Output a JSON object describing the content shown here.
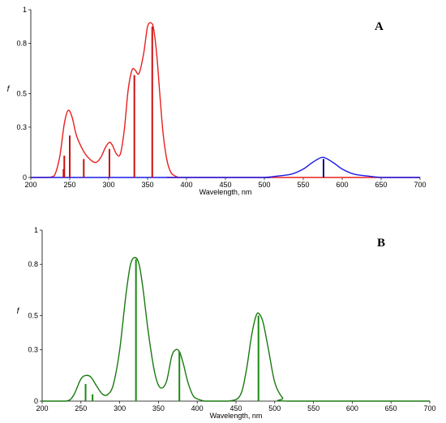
{
  "chart_data": [
    {
      "type": "line",
      "panel_label": "A",
      "xlabel": "Wavelength, nm",
      "ylabel": "f",
      "xlim": [
        200,
        700
      ],
      "ylim": [
        0,
        1.0
      ],
      "xticks": [
        "200",
        "250",
        "300",
        "350",
        "400",
        "450",
        "500",
        "550",
        "600",
        "650",
        "700"
      ],
      "yticks": [
        {
          "value": 0,
          "label": "0"
        },
        {
          "value": 0.3,
          "label": "0.3"
        },
        {
          "value": 0.5,
          "label": "0.5"
        },
        {
          "value": 0.8,
          "label": "0.8"
        },
        {
          "value": 1.0,
          "label": "1"
        }
      ],
      "grid": false,
      "series": [
        {
          "kind": "curve",
          "color": "#e8201e",
          "x": [
            200,
            220,
            230,
            237,
            243,
            248,
            253,
            258,
            263,
            270,
            278,
            284,
            290,
            296,
            301,
            305,
            310,
            315,
            320,
            325,
            330,
            334,
            339,
            345,
            350,
            355,
            358,
            362,
            366,
            370,
            375,
            380,
            385,
            390,
            400,
            700
          ],
          "y": [
            0,
            0,
            0.01,
            0.12,
            0.32,
            0.4,
            0.36,
            0.26,
            0.2,
            0.14,
            0.1,
            0.09,
            0.12,
            0.18,
            0.21,
            0.19,
            0.14,
            0.14,
            0.28,
            0.52,
            0.64,
            0.64,
            0.62,
            0.74,
            0.9,
            0.92,
            0.88,
            0.72,
            0.48,
            0.26,
            0.1,
            0.03,
            0.01,
            0.0,
            0,
            0
          ]
        },
        {
          "kind": "curve",
          "color": "#1a1ae6",
          "x": [
            200,
            480,
            500,
            520,
            535,
            550,
            562,
            575,
            588,
            600,
            615,
            630,
            650,
            670,
            700
          ],
          "y": [
            0,
            0,
            0.0,
            0.01,
            0.02,
            0.05,
            0.09,
            0.12,
            0.09,
            0.05,
            0.02,
            0.01,
            0.0,
            0,
            0
          ],
          "note": ""
        },
        {
          "kind": "sticks",
          "color": "#cc1010",
          "x": [
            242,
            243,
            250,
            268,
            301,
            333,
            356
          ],
          "y": [
            0.05,
            0.13,
            0.25,
            0.11,
            0.17,
            0.61,
            0.9
          ]
        },
        {
          "kind": "sticks",
          "color": "#0a0a80",
          "x": [
            576
          ],
          "y": [
            0.11
          ]
        }
      ]
    },
    {
      "type": "line",
      "panel_label": "B",
      "xlabel": "Wavelength, nm",
      "ylabel": "f",
      "xlim": [
        200,
        700
      ],
      "ylim": [
        0,
        1.0
      ],
      "xticks": [
        "200",
        "250",
        "300",
        "350",
        "400",
        "450",
        "500",
        "550",
        "600",
        "650",
        "700"
      ],
      "yticks": [
        {
          "value": 0,
          "label": "0"
        },
        {
          "value": 0.3,
          "label": "0.3"
        },
        {
          "value": 0.5,
          "label": "0.5"
        },
        {
          "value": 0.8,
          "label": "0.8"
        },
        {
          "value": 1.0,
          "label": "1"
        }
      ],
      "grid": false,
      "series": [
        {
          "kind": "curve",
          "color": "#1a7a10",
          "x": [
            200,
            230,
            240,
            250,
            257,
            263,
            270,
            278,
            285,
            292,
            300,
            308,
            314,
            320,
            325,
            330,
            337,
            345,
            352,
            360,
            367,
            372,
            377,
            382,
            388,
            395,
            402,
            410,
            420,
            440,
            455,
            463,
            470,
            476,
            480,
            485,
            492,
            500,
            510,
            520,
            700
          ],
          "y": [
            0,
            0,
            0.03,
            0.13,
            0.15,
            0.14,
            0.09,
            0.04,
            0.04,
            0.1,
            0.3,
            0.62,
            0.8,
            0.84,
            0.8,
            0.66,
            0.4,
            0.17,
            0.08,
            0.11,
            0.26,
            0.3,
            0.29,
            0.22,
            0.11,
            0.03,
            0.01,
            0.0,
            0,
            0,
            0.03,
            0.17,
            0.38,
            0.5,
            0.51,
            0.46,
            0.3,
            0.11,
            0.02,
            0.0,
            0
          ]
        },
        {
          "kind": "sticks",
          "color": "#1a8a10",
          "x": [
            256,
            265,
            321,
            377,
            479
          ],
          "y": [
            0.1,
            0.04,
            0.83,
            0.29,
            0.5
          ]
        }
      ]
    }
  ]
}
